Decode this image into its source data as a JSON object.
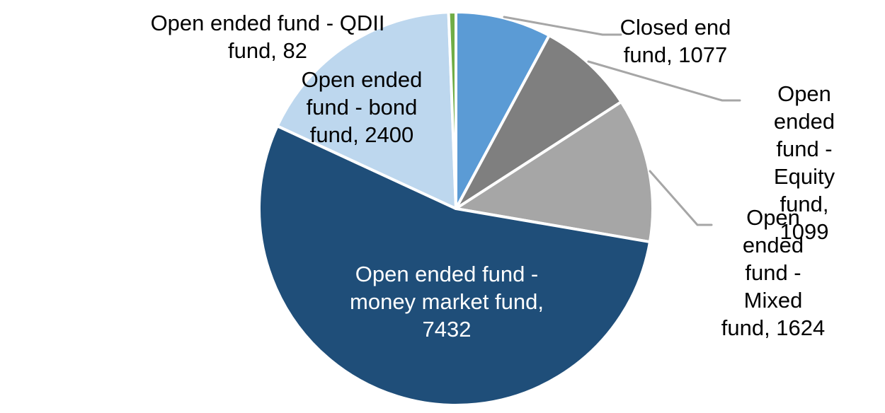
{
  "page": {
    "background": "#FFFFFF"
  },
  "chart_data": {
    "type": "pie",
    "title": "",
    "legend_position": "none",
    "start_angle_deg": 0,
    "direction": "clockwise",
    "total": 13714,
    "slices": [
      {
        "id": "closed-end-fund",
        "label": "Closed end fund",
        "value": 1077,
        "color": "#5B9BD5"
      },
      {
        "id": "equity-fund",
        "label": "Open ended fund - Equity fund",
        "value": 1099,
        "color": "#7F7F7F"
      },
      {
        "id": "mixed-fund",
        "label": "Open ended fund - Mixed fund",
        "value": 1624,
        "color": "#A6A6A6"
      },
      {
        "id": "money-market-fund",
        "label": "Open ended fund - money market fund",
        "value": 7432,
        "color": "#1F4E79"
      },
      {
        "id": "bond-fund",
        "label": "Open ended fund - bond fund",
        "value": 2400,
        "color": "#BDD7EE"
      },
      {
        "id": "qdii-fund",
        "label": "Open ended fund - QDII fund",
        "value": 82,
        "color": "#70AD47"
      }
    ],
    "style": {
      "slice_border": "#FFFFFF",
      "leader_line": "#A6A6A6",
      "label_color": "#000000",
      "inside_label_color": "#FFFFFF"
    },
    "callouts": {
      "qdii": {
        "text": "Open ended fund - QDII\nfund, 82"
      },
      "bond": {
        "text": "Open ended\nfund - bond\nfund, 2400"
      },
      "closed": {
        "text": "Closed end\nfund, 1077"
      },
      "equity": {
        "text": "Open ended\nfund - Equity\nfund, 1099"
      },
      "mixed": {
        "text": "Open ended\nfund - Mixed\nfund, 1624"
      },
      "money_market": {
        "text": "Open ended fund -\nmoney market fund,\n7432"
      }
    }
  }
}
